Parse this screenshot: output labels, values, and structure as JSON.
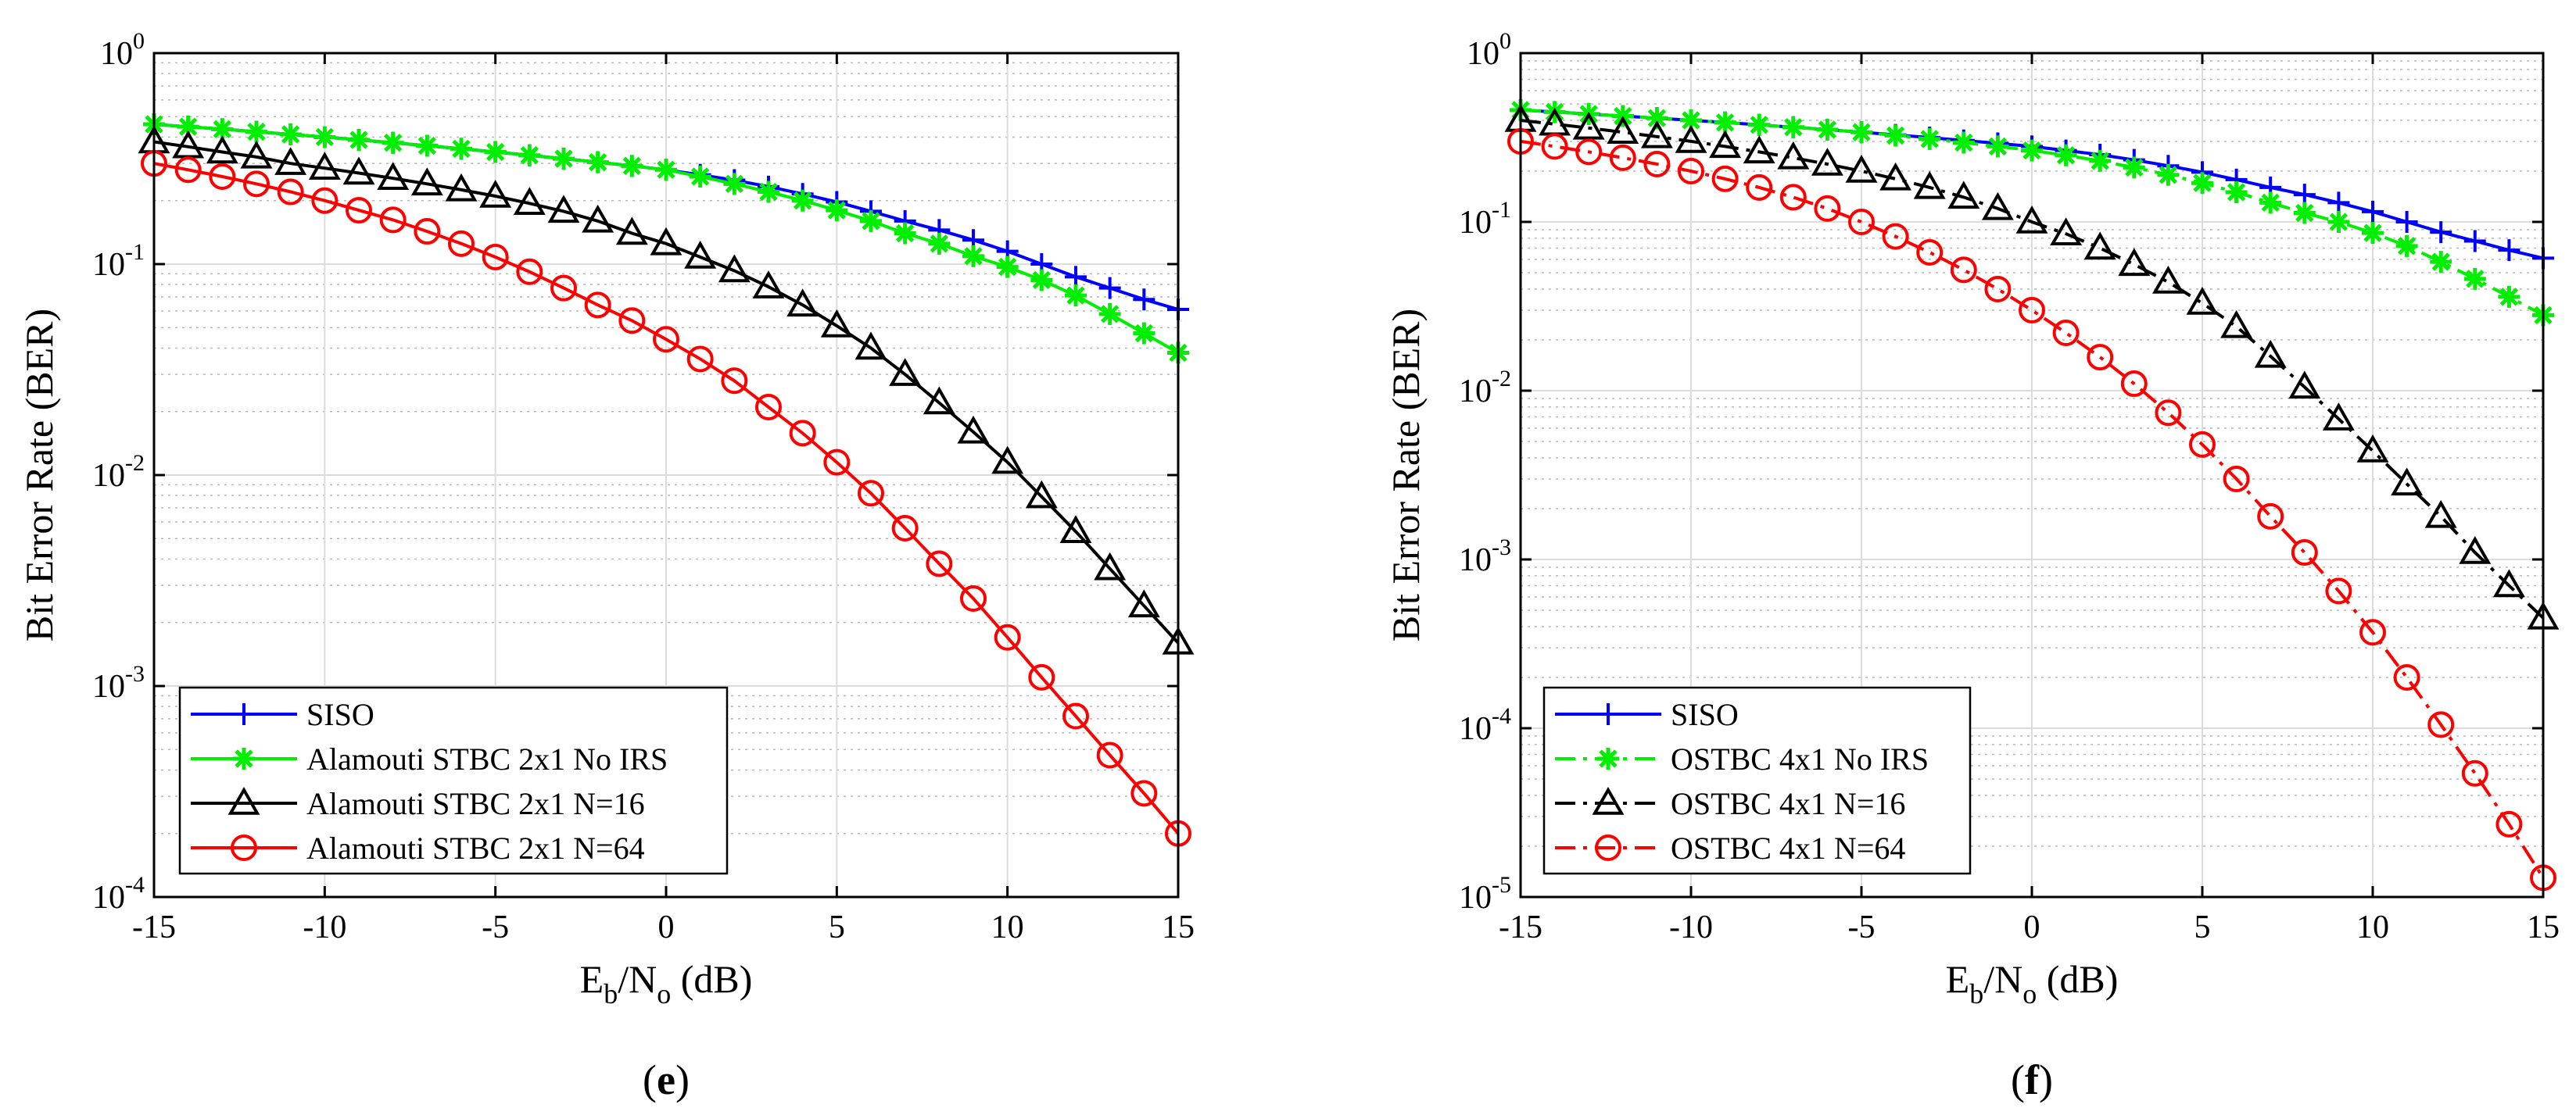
{
  "chart_data": [
    {
      "type": "line",
      "panel_label": "e",
      "xlabel": "Eb/No (dB)",
      "ylabel": "Bit Error Rate (BER)",
      "xlim": [
        -15,
        15
      ],
      "ylim": [
        0.0001,
        1
      ],
      "yscale": "log",
      "grid": true,
      "legend_position": "bottom-left",
      "x_ticks": [
        "-15",
        "-10",
        "-5",
        "0",
        "5",
        "10",
        "15"
      ],
      "y_ticks": [
        {
          "base": "10",
          "exp": "0"
        },
        {
          "base": "10",
          "exp": "-1"
        },
        {
          "base": "10",
          "exp": "-2"
        },
        {
          "base": "10",
          "exp": "-3"
        },
        {
          "base": "10",
          "exp": "-4"
        }
      ],
      "x": [
        -15,
        -14,
        -13,
        -12,
        -11,
        -10,
        -9,
        -8,
        -7,
        -6,
        -5,
        -4,
        -3,
        -2,
        -1,
        0,
        1,
        2,
        3,
        4,
        5,
        6,
        7,
        8,
        9,
        10,
        11,
        12,
        13,
        14,
        15
      ],
      "series": [
        {
          "name": "SISO",
          "color": "#0000ff",
          "marker": "plus",
          "line": "solid",
          "values": [
            0.46,
            0.448,
            0.436,
            0.424,
            0.412,
            0.4,
            0.388,
            0.376,
            0.364,
            0.352,
            0.34,
            0.328,
            0.316,
            0.304,
            0.292,
            0.28,
            0.265,
            0.25,
            0.233,
            0.215,
            0.197,
            0.178,
            0.16,
            0.145,
            0.13,
            0.115,
            0.1,
            0.087,
            0.077,
            0.068,
            0.061
          ]
        },
        {
          "name": "Alamouti STBC 2x1 No IRS",
          "color": "#00ee00",
          "marker": "asterisk",
          "line": "solid",
          "values": [
            0.46,
            0.448,
            0.436,
            0.424,
            0.412,
            0.4,
            0.388,
            0.376,
            0.364,
            0.352,
            0.34,
            0.328,
            0.316,
            0.304,
            0.292,
            0.28,
            0.26,
            0.24,
            0.22,
            0.2,
            0.18,
            0.16,
            0.14,
            0.125,
            0.109,
            0.097,
            0.084,
            0.071,
            0.058,
            0.047,
            0.038
          ]
        },
        {
          "name": "Alamouti STBC 2x1 N=16",
          "color": "#000000",
          "marker": "triangle",
          "line": "solid",
          "values": [
            0.38,
            0.36,
            0.34,
            0.322,
            0.3,
            0.285,
            0.27,
            0.255,
            0.24,
            0.225,
            0.21,
            0.194,
            0.178,
            0.16,
            0.14,
            0.125,
            0.108,
            0.093,
            0.078,
            0.064,
            0.051,
            0.04,
            0.03,
            0.022,
            0.016,
            0.0115,
            0.0079,
            0.0054,
            0.0036,
            0.0024,
            0.0016
          ]
        },
        {
          "name": "Alamouti STBC 2x1 N=64",
          "color": "#ff0000",
          "marker": "circle",
          "line": "solid",
          "values": [
            0.3,
            0.28,
            0.26,
            0.24,
            0.22,
            0.2,
            0.18,
            0.162,
            0.143,
            0.125,
            0.108,
            0.092,
            0.077,
            0.064,
            0.054,
            0.044,
            0.0355,
            0.028,
            0.021,
            0.0158,
            0.0115,
            0.0082,
            0.0056,
            0.0038,
            0.0026,
            0.0017,
            0.0011,
            0.00072,
            0.00047,
            0.00031,
            0.0002
          ]
        }
      ]
    },
    {
      "type": "line",
      "panel_label": "f",
      "xlabel": "Eb/No (dB)",
      "ylabel": "Bit Error Rate (BER)",
      "xlim": [
        -15,
        15
      ],
      "ylim": [
        1e-05,
        1
      ],
      "yscale": "log",
      "grid": true,
      "legend_position": "bottom-left",
      "x_ticks": [
        "-15",
        "-10",
        "-5",
        "0",
        "5",
        "10",
        "15"
      ],
      "y_ticks": [
        {
          "base": "10",
          "exp": "0"
        },
        {
          "base": "10",
          "exp": "-1"
        },
        {
          "base": "10",
          "exp": "-2"
        },
        {
          "base": "10",
          "exp": "-3"
        },
        {
          "base": "10",
          "exp": "-4"
        },
        {
          "base": "10",
          "exp": "-5"
        }
      ],
      "x": [
        -15,
        -14,
        -13,
        -12,
        -11,
        -10,
        -9,
        -8,
        -7,
        -6,
        -5,
        -4,
        -3,
        -2,
        -1,
        0,
        1,
        2,
        3,
        4,
        5,
        6,
        7,
        8,
        9,
        10,
        11,
        12,
        13,
        14,
        15
      ],
      "series": [
        {
          "name": "SISO",
          "color": "#0000ff",
          "marker": "plus",
          "line": "solid",
          "values": [
            0.46,
            0.448,
            0.436,
            0.424,
            0.412,
            0.4,
            0.388,
            0.376,
            0.364,
            0.352,
            0.34,
            0.328,
            0.316,
            0.304,
            0.292,
            0.28,
            0.265,
            0.25,
            0.233,
            0.215,
            0.197,
            0.178,
            0.16,
            0.145,
            0.13,
            0.115,
            0.1,
            0.087,
            0.077,
            0.068,
            0.061
          ]
        },
        {
          "name": "OSTBC 4x1 No IRS",
          "color": "#00ee00",
          "marker": "asterisk",
          "line": "dashdot",
          "values": [
            0.46,
            0.448,
            0.436,
            0.424,
            0.412,
            0.4,
            0.388,
            0.376,
            0.364,
            0.352,
            0.34,
            0.325,
            0.31,
            0.295,
            0.28,
            0.265,
            0.248,
            0.23,
            0.21,
            0.19,
            0.17,
            0.15,
            0.13,
            0.113,
            0.1,
            0.086,
            0.072,
            0.058,
            0.046,
            0.036,
            0.028
          ]
        },
        {
          "name": "OSTBC 4x1 N=16",
          "color": "#000000",
          "marker": "triangle",
          "line": "dashdot",
          "values": [
            0.4,
            0.38,
            0.36,
            0.34,
            0.32,
            0.3,
            0.28,
            0.26,
            0.24,
            0.22,
            0.2,
            0.18,
            0.16,
            0.14,
            0.12,
            0.1,
            0.085,
            0.07,
            0.056,
            0.044,
            0.033,
            0.024,
            0.016,
            0.0105,
            0.0068,
            0.0044,
            0.0028,
            0.0018,
            0.0011,
            0.0007,
            0.00045
          ]
        },
        {
          "name": "OSTBC 4x1 N=64",
          "color": "#ff0000",
          "marker": "circle",
          "line": "dashdot",
          "values": [
            0.3,
            0.28,
            0.26,
            0.24,
            0.22,
            0.2,
            0.18,
            0.16,
            0.14,
            0.12,
            0.1,
            0.082,
            0.066,
            0.052,
            0.04,
            0.03,
            0.022,
            0.0158,
            0.011,
            0.0074,
            0.0048,
            0.003,
            0.0018,
            0.0011,
            0.00065,
            0.00037,
            0.0002,
            0.000105,
            5.4e-05,
            2.7e-05,
            1.3e-05
          ]
        }
      ]
    }
  ]
}
